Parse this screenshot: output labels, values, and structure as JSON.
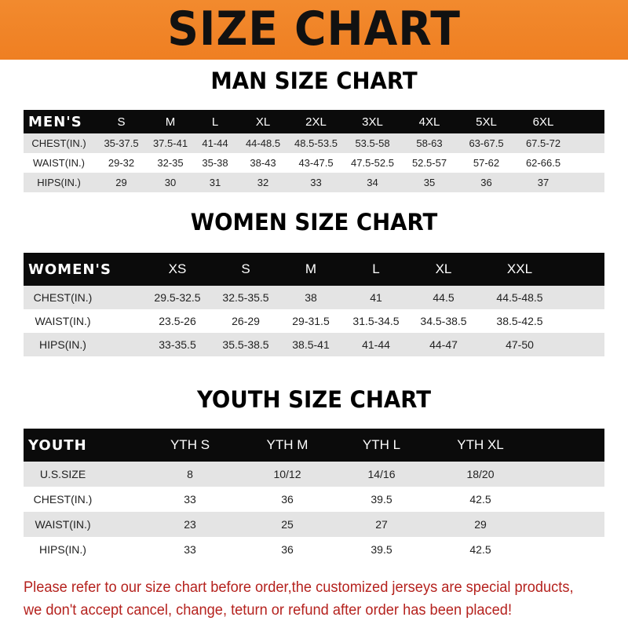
{
  "title": "SIZE CHART",
  "colors": {
    "banner": "#ef8326",
    "header_row": "#0b0b0b",
    "stripe": "#e4e4e4",
    "notice": "#b5221e"
  },
  "men": {
    "heading": "MAN SIZE CHART",
    "columns": [
      "MEN'S",
      "S",
      "M",
      "L",
      "XL",
      "2XL",
      "3XL",
      "4XL",
      "5XL",
      "6XL"
    ],
    "rows": [
      [
        "CHEST(IN.)",
        "35-37.5",
        "37.5-41",
        "41-44",
        "44-48.5",
        "48.5-53.5",
        "53.5-58",
        "58-63",
        "63-67.5",
        "67.5-72"
      ],
      [
        "WAIST(IN.)",
        "29-32",
        "32-35",
        "35-38",
        "38-43",
        "43-47.5",
        "47.5-52.5",
        "52.5-57",
        "57-62",
        "62-66.5"
      ],
      [
        "HIPS(IN.)",
        "29",
        "30",
        "31",
        "32",
        "33",
        "34",
        "35",
        "36",
        "37"
      ]
    ]
  },
  "women": {
    "heading": "WOMEN SIZE CHART",
    "columns": [
      "WOMEN'S",
      "XS",
      "S",
      "M",
      "L",
      "XL",
      "XXL"
    ],
    "rows": [
      [
        "CHEST(IN.)",
        "29.5-32.5",
        "32.5-35.5",
        "38",
        "41",
        "44.5",
        "44.5-48.5"
      ],
      [
        "WAIST(IN.)",
        "23.5-26",
        "26-29",
        "29-31.5",
        "31.5-34.5",
        "34.5-38.5",
        "38.5-42.5"
      ],
      [
        "HIPS(IN.)",
        "33-35.5",
        "35.5-38.5",
        "38.5-41",
        "41-44",
        "44-47",
        "47-50"
      ]
    ]
  },
  "youth": {
    "heading": "YOUTH SIZE CHART",
    "columns": [
      "YOUTH",
      "YTH S",
      "YTH M",
      "YTH L",
      "YTH XL"
    ],
    "rows": [
      [
        "U.S.SIZE",
        "8",
        "10/12",
        "14/16",
        "18/20"
      ],
      [
        "CHEST(IN.)",
        "33",
        "36",
        "39.5",
        "42.5"
      ],
      [
        "WAIST(IN.)",
        "23",
        "25",
        "27",
        "29"
      ],
      [
        "HIPS(IN.)",
        "33",
        "36",
        "39.5",
        "42.5"
      ]
    ]
  },
  "notice": {
    "line1": "Please refer to our size chart before order,the customized jerseys are special products,",
    "line2": "we don't accept cancel, change, teturn or refund after order has been placed!"
  }
}
